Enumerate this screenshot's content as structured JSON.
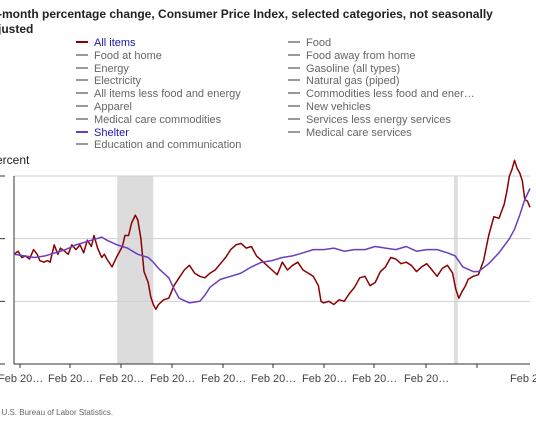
{
  "chart_data": {
    "type": "line",
    "title": "-month percentage change, Consumer Price Index, selected categories, not seasonally\njusted",
    "ylabel": "ercent",
    "source": ": U.S. Bureau of Labor Statistics.",
    "x_tick_labels": [
      "Feb 20…",
      "Feb 20…",
      "Feb 20…",
      "Feb 20…",
      "Feb 20…",
      "Feb 20…",
      "Feb 20…",
      "Feb 20…",
      "Feb 20…",
      "Feb 2"
    ],
    "recessions": [
      [
        0.2,
        0.27
      ],
      [
        0.853,
        0.86
      ]
    ],
    "legend": [
      {
        "name": "All items",
        "color": "#8b0000",
        "active": true
      },
      {
        "name": "Food",
        "color": "#999999",
        "active": false
      },
      {
        "name": "Food at home",
        "color": "#999999",
        "active": false
      },
      {
        "name": "Food away from home",
        "color": "#999999",
        "active": false
      },
      {
        "name": "Energy",
        "color": "#999999",
        "active": false
      },
      {
        "name": "Gasoline (all types)",
        "color": "#999999",
        "active": false
      },
      {
        "name": "Electricity",
        "color": "#999999",
        "active": false
      },
      {
        "name": "Natural gas (piped)",
        "color": "#999999",
        "active": false
      },
      {
        "name": "All items less food and energy",
        "color": "#999999",
        "active": false
      },
      {
        "name": "Commodities less food and ener…",
        "color": "#999999",
        "active": false
      },
      {
        "name": "Apparel",
        "color": "#999999",
        "active": false
      },
      {
        "name": "New vehicles",
        "color": "#999999",
        "active": false
      },
      {
        "name": "Medical care commodities",
        "color": "#999999",
        "active": false
      },
      {
        "name": "Services less energy services",
        "color": "#999999",
        "active": false
      },
      {
        "name": "Shelter",
        "color": "#6a3fbf",
        "active": true
      },
      {
        "name": "Medical care services",
        "color": "#999999",
        "active": false
      },
      {
        "name": "Education and communication",
        "color": "#999999",
        "active": false
      }
    ],
    "series": [
      {
        "name": "All items",
        "color": "#8b0000",
        "points": [
          [
            0.0,
            3.0
          ],
          [
            0.008,
            3.2
          ],
          [
            0.015,
            2.8
          ],
          [
            0.022,
            2.9
          ],
          [
            0.03,
            2.7
          ],
          [
            0.038,
            3.3
          ],
          [
            0.045,
            3.0
          ],
          [
            0.05,
            2.6
          ],
          [
            0.058,
            2.5
          ],
          [
            0.065,
            2.6
          ],
          [
            0.07,
            2.5
          ],
          [
            0.078,
            3.6
          ],
          [
            0.085,
            3.0
          ],
          [
            0.09,
            3.4
          ],
          [
            0.098,
            3.2
          ],
          [
            0.105,
            3.0
          ],
          [
            0.112,
            3.6
          ],
          [
            0.12,
            3.3
          ],
          [
            0.128,
            3.6
          ],
          [
            0.135,
            3.1
          ],
          [
            0.142,
            3.9
          ],
          [
            0.15,
            3.5
          ],
          [
            0.155,
            4.2
          ],
          [
            0.162,
            3.4
          ],
          [
            0.17,
            2.8
          ],
          [
            0.175,
            3.0
          ],
          [
            0.18,
            2.7
          ],
          [
            0.19,
            2.2
          ],
          [
            0.2,
            2.9
          ],
          [
            0.21,
            3.5
          ],
          [
            0.215,
            4.2
          ],
          [
            0.222,
            4.2
          ],
          [
            0.228,
            5.0
          ],
          [
            0.235,
            5.5
          ],
          [
            0.24,
            5.2
          ],
          [
            0.246,
            4.0
          ],
          [
            0.252,
            1.9
          ],
          [
            0.26,
            1.2
          ],
          [
            0.265,
            0.3
          ],
          [
            0.27,
            -0.2
          ],
          [
            0.275,
            -0.5
          ],
          [
            0.28,
            -0.2
          ],
          [
            0.29,
            0.1
          ],
          [
            0.3,
            0.2
          ],
          [
            0.31,
            1.0
          ],
          [
            0.32,
            1.5
          ],
          [
            0.33,
            2.0
          ],
          [
            0.34,
            2.3
          ],
          [
            0.35,
            1.8
          ],
          [
            0.36,
            1.6
          ],
          [
            0.37,
            1.5
          ],
          [
            0.38,
            1.8
          ],
          [
            0.39,
            2.0
          ],
          [
            0.4,
            2.4
          ],
          [
            0.41,
            2.8
          ],
          [
            0.42,
            3.3
          ],
          [
            0.43,
            3.6
          ],
          [
            0.44,
            3.7
          ],
          [
            0.45,
            3.4
          ],
          [
            0.46,
            3.5
          ],
          [
            0.47,
            2.9
          ],
          [
            0.48,
            2.6
          ],
          [
            0.49,
            2.3
          ],
          [
            0.5,
            2.0
          ],
          [
            0.51,
            1.7
          ],
          [
            0.52,
            2.5
          ],
          [
            0.53,
            2.0
          ],
          [
            0.54,
            2.3
          ],
          [
            0.55,
            2.5
          ],
          [
            0.56,
            2.0
          ],
          [
            0.57,
            1.8
          ],
          [
            0.58,
            1.6
          ],
          [
            0.59,
            1.0
          ],
          [
            0.595,
            0.0
          ],
          [
            0.6,
            -0.1
          ],
          [
            0.61,
            0.0
          ],
          [
            0.62,
            -0.2
          ],
          [
            0.63,
            0.1
          ],
          [
            0.64,
            0.0
          ],
          [
            0.65,
            0.5
          ],
          [
            0.66,
            0.9
          ],
          [
            0.67,
            1.5
          ],
          [
            0.68,
            1.6
          ],
          [
            0.69,
            1.0
          ],
          [
            0.7,
            1.2
          ],
          [
            0.71,
            1.9
          ],
          [
            0.72,
            2.2
          ],
          [
            0.73,
            2.8
          ],
          [
            0.74,
            2.7
          ],
          [
            0.75,
            2.4
          ],
          [
            0.76,
            2.5
          ],
          [
            0.77,
            2.3
          ],
          [
            0.78,
            1.9
          ],
          [
            0.79,
            2.2
          ],
          [
            0.8,
            2.4
          ],
          [
            0.81,
            2.0
          ],
          [
            0.82,
            1.6
          ],
          [
            0.83,
            2.1
          ],
          [
            0.84,
            2.3
          ],
          [
            0.85,
            1.8
          ],
          [
            0.856,
            0.8
          ],
          [
            0.862,
            0.2
          ],
          [
            0.868,
            0.6
          ],
          [
            0.875,
            1.0
          ],
          [
            0.88,
            1.4
          ],
          [
            0.89,
            1.6
          ],
          [
            0.9,
            1.7
          ],
          [
            0.91,
            2.6
          ],
          [
            0.92,
            4.2
          ],
          [
            0.93,
            5.4
          ],
          [
            0.94,
            5.3
          ],
          [
            0.95,
            6.2
          ],
          [
            0.955,
            7.0
          ],
          [
            0.96,
            8.0
          ],
          [
            0.965,
            8.4
          ],
          [
            0.97,
            9.0
          ],
          [
            0.975,
            8.5
          ],
          [
            0.98,
            8.2
          ],
          [
            0.985,
            7.7
          ],
          [
            0.99,
            6.5
          ],
          [
            0.995,
            6.4
          ],
          [
            1.0,
            6.0
          ]
        ]
      },
      {
        "name": "Shelter",
        "color": "#6a3fbf",
        "points": [
          [
            0.0,
            3.0
          ],
          [
            0.02,
            2.9
          ],
          [
            0.04,
            2.8
          ],
          [
            0.06,
            2.9
          ],
          [
            0.08,
            3.1
          ],
          [
            0.1,
            3.3
          ],
          [
            0.12,
            3.6
          ],
          [
            0.14,
            3.8
          ],
          [
            0.16,
            4.0
          ],
          [
            0.17,
            4.1
          ],
          [
            0.18,
            3.9
          ],
          [
            0.2,
            3.6
          ],
          [
            0.22,
            3.4
          ],
          [
            0.24,
            3.0
          ],
          [
            0.26,
            2.8
          ],
          [
            0.27,
            2.5
          ],
          [
            0.28,
            2.1
          ],
          [
            0.3,
            1.5
          ],
          [
            0.31,
            0.8
          ],
          [
            0.32,
            0.2
          ],
          [
            0.34,
            -0.1
          ],
          [
            0.36,
            0.0
          ],
          [
            0.37,
            0.4
          ],
          [
            0.38,
            0.9
          ],
          [
            0.4,
            1.4
          ],
          [
            0.42,
            1.6
          ],
          [
            0.44,
            1.8
          ],
          [
            0.46,
            2.2
          ],
          [
            0.48,
            2.5
          ],
          [
            0.5,
            2.6
          ],
          [
            0.52,
            2.8
          ],
          [
            0.54,
            2.9
          ],
          [
            0.56,
            3.1
          ],
          [
            0.58,
            3.3
          ],
          [
            0.6,
            3.3
          ],
          [
            0.62,
            3.4
          ],
          [
            0.64,
            3.2
          ],
          [
            0.66,
            3.3
          ],
          [
            0.68,
            3.3
          ],
          [
            0.7,
            3.5
          ],
          [
            0.72,
            3.4
          ],
          [
            0.74,
            3.3
          ],
          [
            0.76,
            3.5
          ],
          [
            0.78,
            3.2
          ],
          [
            0.8,
            3.3
          ],
          [
            0.82,
            3.3
          ],
          [
            0.84,
            3.1
          ],
          [
            0.855,
            2.9
          ],
          [
            0.87,
            2.2
          ],
          [
            0.89,
            1.9
          ],
          [
            0.9,
            1.9
          ],
          [
            0.92,
            2.4
          ],
          [
            0.94,
            3.1
          ],
          [
            0.96,
            4.0
          ],
          [
            0.97,
            4.6
          ],
          [
            0.98,
            5.5
          ],
          [
            0.99,
            6.5
          ],
          [
            1.0,
            7.2
          ]
        ]
      }
    ],
    "y_grid_values": [
      -4,
      0,
      4,
      8
    ]
  }
}
